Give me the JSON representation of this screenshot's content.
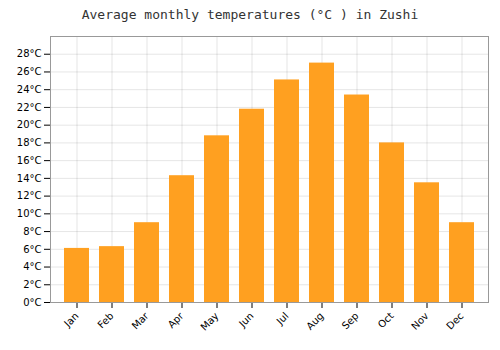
{
  "chart_data": {
    "type": "bar",
    "title": "Average monthly temperatures (°C ) in Zushi",
    "categories": [
      "Jan",
      "Feb",
      "Mar",
      "Apr",
      "May",
      "Jun",
      "Jul",
      "Aug",
      "Sep",
      "Oct",
      "Nov",
      "Dec"
    ],
    "values": [
      6.1,
      6.3,
      9.0,
      14.3,
      18.8,
      21.8,
      25.1,
      27.0,
      23.4,
      18.0,
      13.5,
      9.0
    ],
    "color": "#FFA020",
    "ylim": [
      0,
      30
    ],
    "yticks": [
      {
        "value": 0,
        "label": "0°C"
      },
      {
        "value": 2,
        "label": "2°C"
      },
      {
        "value": 4,
        "label": "4°C"
      },
      {
        "value": 6,
        "label": "6°C"
      },
      {
        "value": 8,
        "label": "8°C"
      },
      {
        "value": 10,
        "label": "10°C"
      },
      {
        "value": 12,
        "label": "12°C"
      },
      {
        "value": 14,
        "label": "14°C"
      },
      {
        "value": 16,
        "label": "16°C"
      },
      {
        "value": 18,
        "label": "18°C"
      },
      {
        "value": 20,
        "label": "20°C"
      },
      {
        "value": 22,
        "label": "22°C"
      },
      {
        "value": 24,
        "label": "24°C"
      },
      {
        "value": 26,
        "label": "26°C"
      },
      {
        "value": 28,
        "label": "28°C"
      }
    ],
    "grid": true
  }
}
